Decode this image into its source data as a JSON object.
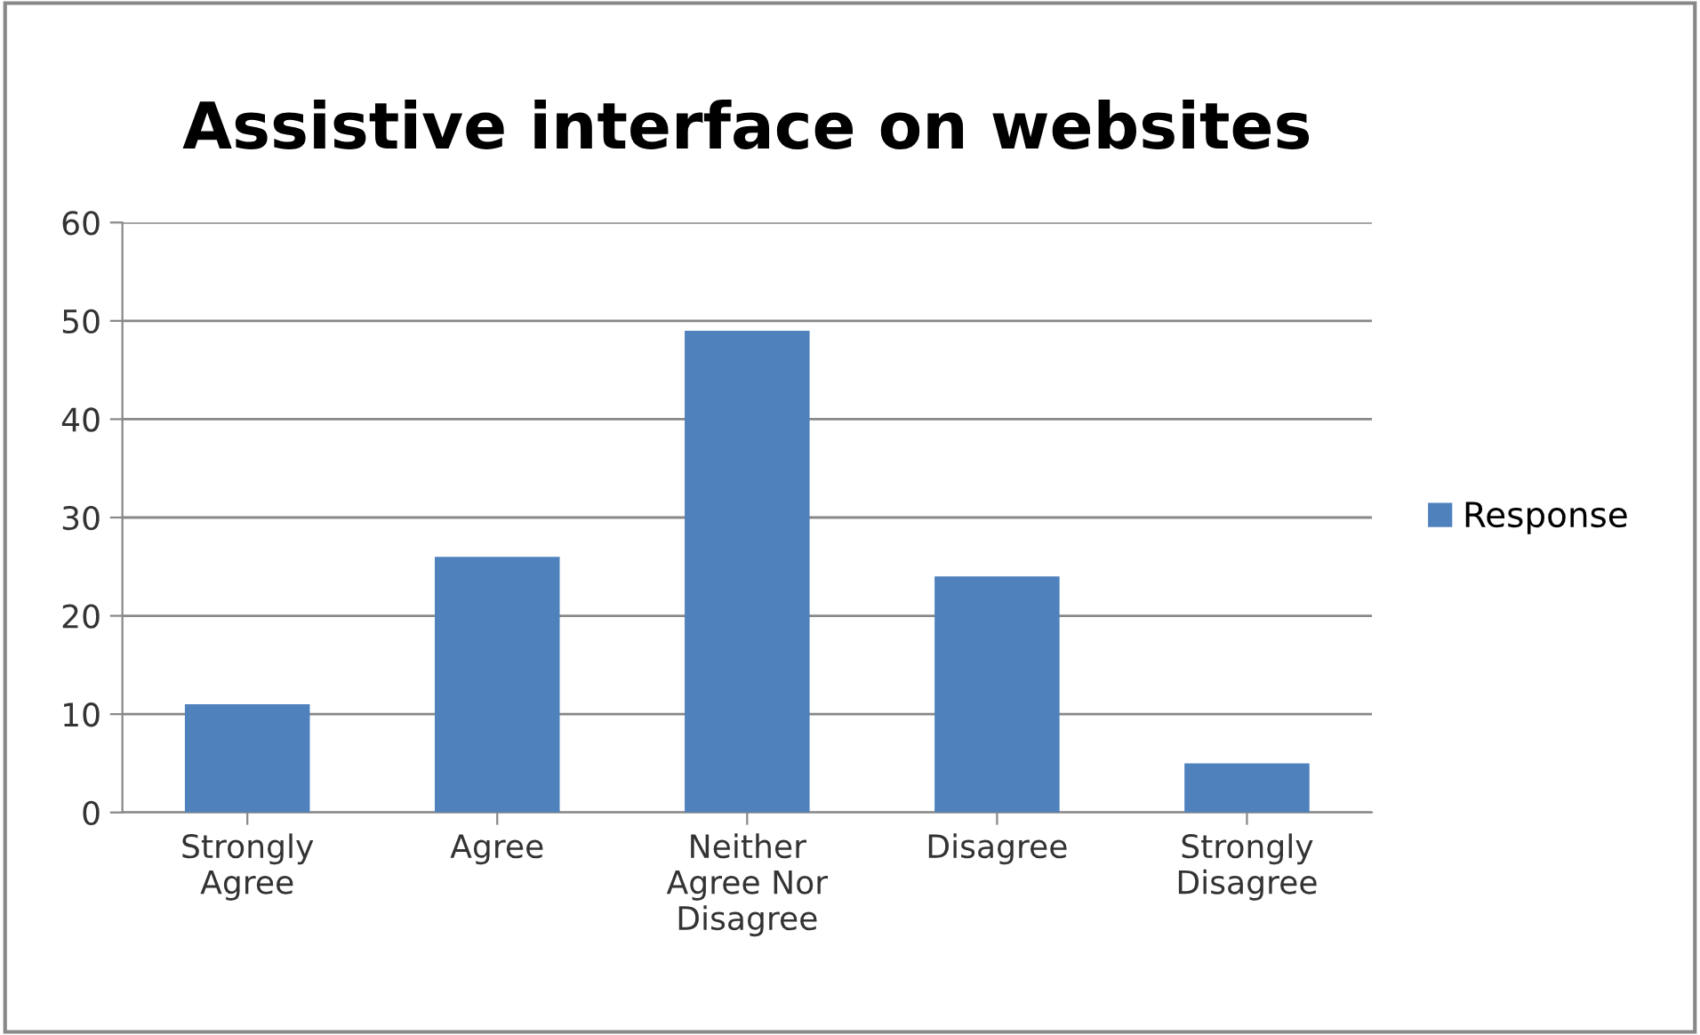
{
  "chart_data": {
    "type": "bar",
    "title": "Assistive interface on websites",
    "categories": [
      "Strongly\nAgree",
      "Agree",
      "Neither\nAgree Nor\nDisagree",
      "Disagree",
      "Strongly\nDisagree"
    ],
    "series": [
      {
        "name": "Response",
        "color": "#4f81bd",
        "values": [
          11,
          26,
          49,
          24,
          5
        ]
      }
    ],
    "ylim": [
      0,
      60
    ],
    "yticks": [
      0,
      10,
      20,
      30,
      40,
      50,
      60
    ],
    "grid": "y",
    "legend": "right"
  }
}
